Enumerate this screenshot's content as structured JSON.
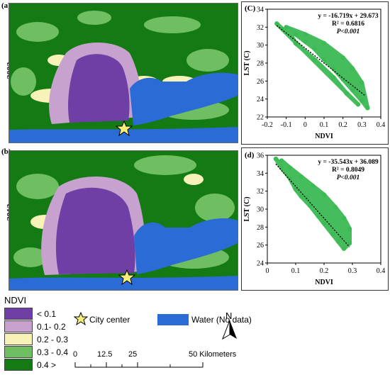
{
  "panels": {
    "a": {
      "label": "(a)",
      "year": "2002"
    },
    "b": {
      "label": "(b)",
      "year": "2013"
    },
    "c": {
      "label": "(C)"
    },
    "d": {
      "label": "(d)"
    }
  },
  "colors": {
    "ndvi_lt_0_1": "#6f3fa6",
    "ndvi_0_1_0_2": "#c8a2cf",
    "ndvi_0_2_0_3": "#f7f2b8",
    "ndvi_0_3_0_4": "#6fbe62",
    "ndvi_gt_0_4": "#147a14",
    "water": "#2b6bd6",
    "scatter_points": "#3cba54",
    "regression_line": "#000000"
  },
  "legend": {
    "title": "NDVI",
    "items": [
      {
        "label": "< 0.1",
        "color": "#6f3fa6"
      },
      {
        "label": "0.1- 0.2",
        "color": "#c8a2cf"
      },
      {
        "label": "0.2 - 0.3",
        "color": "#f7f2b8"
      },
      {
        "label": "0.3 - 0.4",
        "color": "#6fbe62"
      },
      {
        "label": "0.4 >",
        "color": "#147a14"
      }
    ],
    "city_center": "City center",
    "water": "Water (No data)",
    "north": "N",
    "scale": {
      "ticks": [
        "0",
        "12.5",
        "25",
        "50 Kilometers"
      ]
    }
  },
  "chart_data": [
    {
      "panel": "(C)",
      "type": "scatter",
      "xlabel": "NDVI",
      "ylabel": "LST (C)",
      "xlim": [
        -0.2,
        0.4
      ],
      "ylim": [
        22,
        34
      ],
      "xticks": [
        "-0.2",
        "-0.1",
        "0",
        "0.1",
        "0.2",
        "0.3",
        "0.4"
      ],
      "yticks": [
        "22",
        "24",
        "26",
        "28",
        "30",
        "32",
        "34"
      ],
      "equation": "y = -16.719x + 29.673",
      "r2": "R² = 0.6816",
      "p": "P<0.001",
      "slope": -16.719,
      "intercept": 29.673,
      "fit_x": [
        -0.15,
        0.32
      ],
      "cloud": [
        [
          -0.15,
          32.4
        ],
        [
          -0.12,
          31.8
        ],
        [
          -0.05,
          31.2
        ],
        [
          0.0,
          30.4
        ],
        [
          0.05,
          29.6
        ],
        [
          0.1,
          28.4
        ],
        [
          0.15,
          27.4
        ],
        [
          0.2,
          26.2
        ],
        [
          0.25,
          25.0
        ],
        [
          0.3,
          23.8
        ],
        [
          0.33,
          23.0
        ],
        [
          0.3,
          25.8
        ],
        [
          0.25,
          27.4
        ],
        [
          0.2,
          28.6
        ],
        [
          0.1,
          30.2
        ],
        [
          0.0,
          31.2
        ],
        [
          -0.1,
          32.0
        ],
        [
          -0.05,
          30.2
        ],
        [
          0.05,
          28.4
        ],
        [
          0.15,
          26.4
        ],
        [
          0.22,
          24.6
        ],
        [
          0.28,
          23.4
        ]
      ]
    },
    {
      "panel": "(d)",
      "type": "scatter",
      "xlabel": "NDVI",
      "ylabel": "LST (C)",
      "xlim": [
        0,
        0.4
      ],
      "ylim": [
        24,
        36
      ],
      "xticks": [
        "0",
        "0.1",
        "0.2",
        "0.3",
        "0.4"
      ],
      "yticks": [
        "24",
        "26",
        "28",
        "30",
        "32",
        "34",
        "36"
      ],
      "equation": "y = -35.543x + 36.089",
      "r2": "R² = 0.8049",
      "p": "P<0.001",
      "slope": -35.543,
      "intercept": 36.089,
      "fit_x": [
        0.03,
        0.29
      ],
      "cloud": [
        [
          0.03,
          35.6
        ],
        [
          0.05,
          34.6
        ],
        [
          0.08,
          33.4
        ],
        [
          0.1,
          32.2
        ],
        [
          0.12,
          31.4
        ],
        [
          0.15,
          30.4
        ],
        [
          0.18,
          29.2
        ],
        [
          0.2,
          28.4
        ],
        [
          0.23,
          27.2
        ],
        [
          0.25,
          26.4
        ],
        [
          0.27,
          25.6
        ],
        [
          0.29,
          26.2
        ],
        [
          0.29,
          27.8
        ],
        [
          0.27,
          29.0
        ],
        [
          0.24,
          30.2
        ],
        [
          0.2,
          31.6
        ],
        [
          0.16,
          32.6
        ],
        [
          0.12,
          33.6
        ],
        [
          0.08,
          34.6
        ],
        [
          0.05,
          35.4
        ],
        [
          0.14,
          31.2
        ],
        [
          0.22,
          28.2
        ],
        [
          0.26,
          26.8
        ]
      ]
    }
  ]
}
